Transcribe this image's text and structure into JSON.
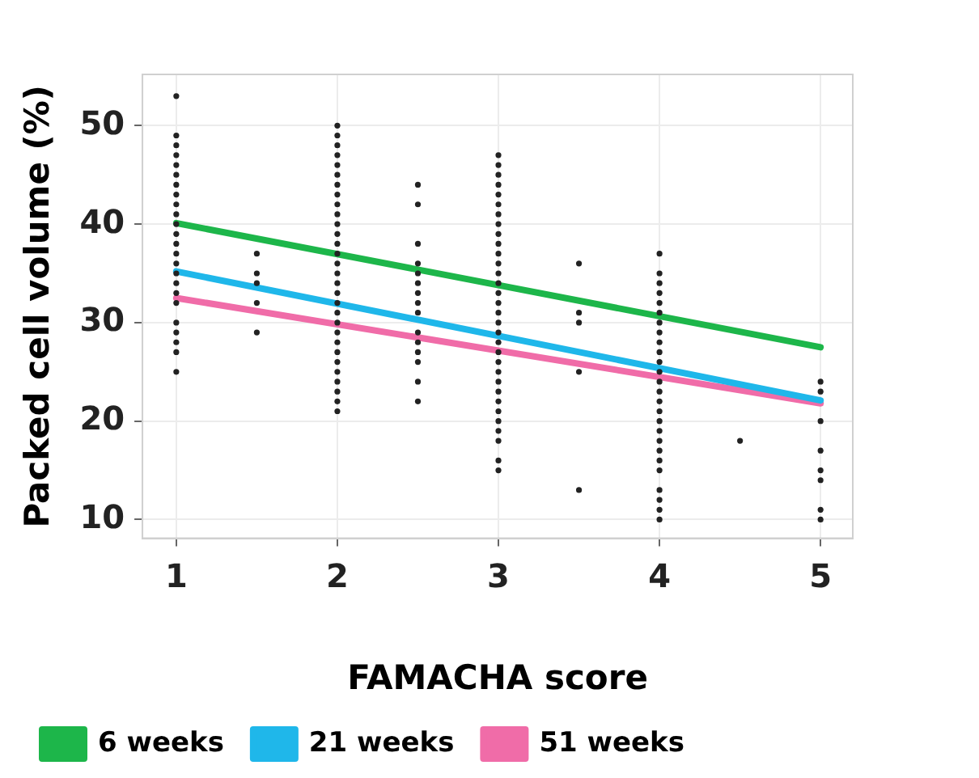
{
  "chart_data": {
    "type": "scatter",
    "xlabel": "FAMACHA score",
    "ylabel": "Packed cell volume (%)",
    "xlim": [
      0.79,
      5.2
    ],
    "xticks": [
      1,
      2,
      3,
      4,
      5
    ],
    "ylim": [
      8.1,
      55.2
    ],
    "yticks": [
      10,
      20,
      30,
      40,
      50
    ],
    "grid": true,
    "legend": "bottom",
    "series": [
      {
        "type": "scatter",
        "color": "#222222",
        "marker": "circle",
        "x": [
          1,
          1,
          1,
          1,
          1,
          1,
          1,
          1,
          1,
          1,
          1,
          1,
          1,
          1,
          1,
          1,
          1,
          1,
          1,
          1,
          1,
          1,
          1,
          1,
          1.5,
          1.5,
          1.5,
          1.5,
          1.5,
          2,
          2,
          2,
          2,
          2,
          2,
          2,
          2,
          2,
          2,
          2,
          2,
          2,
          2,
          2,
          2,
          2,
          2,
          2,
          2,
          2,
          2,
          2,
          2,
          2,
          2,
          2,
          2,
          2,
          2,
          2.5,
          2.5,
          2.5,
          2.5,
          2.5,
          2.5,
          2.5,
          2.5,
          2.5,
          2.5,
          2.5,
          2.5,
          2.5,
          2.5,
          2.5,
          3,
          3,
          3,
          3,
          3,
          3,
          3,
          3,
          3,
          3,
          3,
          3,
          3,
          3,
          3,
          3,
          3,
          3,
          3,
          3,
          3,
          3,
          3,
          3,
          3,
          3,
          3,
          3,
          3,
          3,
          3,
          3,
          3.5,
          3.5,
          3.5,
          3.5,
          3.5,
          4,
          4,
          4,
          4,
          4,
          4,
          4,
          4,
          4,
          4,
          4,
          4,
          4,
          4,
          4,
          4,
          4,
          4,
          4,
          4,
          4,
          4,
          4,
          4,
          4,
          4,
          4.5,
          5,
          5,
          5,
          5,
          5,
          5,
          5,
          5
        ],
        "values": [
          53,
          49,
          48,
          47,
          46,
          45,
          44,
          43,
          42,
          41,
          40,
          39,
          38,
          37,
          36,
          35,
          34,
          33,
          32,
          30,
          29,
          28,
          27,
          25,
          37,
          35,
          34,
          32,
          29,
          50,
          49,
          48,
          47,
          46,
          45,
          44,
          43,
          42,
          41,
          40,
          39,
          38,
          37,
          36,
          35,
          34,
          33,
          32,
          31,
          30,
          29,
          28,
          27,
          26,
          25,
          24,
          23,
          22,
          21,
          44,
          42,
          38,
          36,
          35,
          34,
          33,
          32,
          31,
          29,
          28,
          27,
          26,
          24,
          22,
          47,
          46,
          45,
          44,
          43,
          42,
          41,
          40,
          39,
          38,
          37,
          36,
          35,
          34,
          33,
          32,
          31,
          30,
          29,
          28,
          27,
          26,
          25,
          24,
          23,
          22,
          21,
          20,
          19,
          18,
          16,
          15,
          36,
          31,
          30,
          25,
          13,
          37,
          35,
          34,
          33,
          32,
          31,
          30,
          29,
          28,
          27,
          26,
          25,
          24,
          23,
          22,
          21,
          20,
          19,
          18,
          17,
          16,
          15,
          13,
          12,
          11,
          10,
          18,
          24,
          23,
          20,
          17,
          15,
          14,
          11,
          10
        ]
      },
      {
        "type": "line",
        "name": "6 weeks",
        "color": "#1db64a",
        "marker": "none",
        "x": [
          1,
          5
        ],
        "values": [
          40.1,
          27.5
        ]
      },
      {
        "type": "line",
        "name": "21 weeks",
        "color": "#1fb7ea",
        "marker": "none",
        "x": [
          1,
          5
        ],
        "values": [
          35.2,
          22.1
        ]
      },
      {
        "type": "line",
        "name": "51 weeks",
        "color": "#f06ca8",
        "marker": "none",
        "x": [
          1,
          5
        ],
        "values": [
          32.5,
          21.8
        ]
      }
    ]
  }
}
